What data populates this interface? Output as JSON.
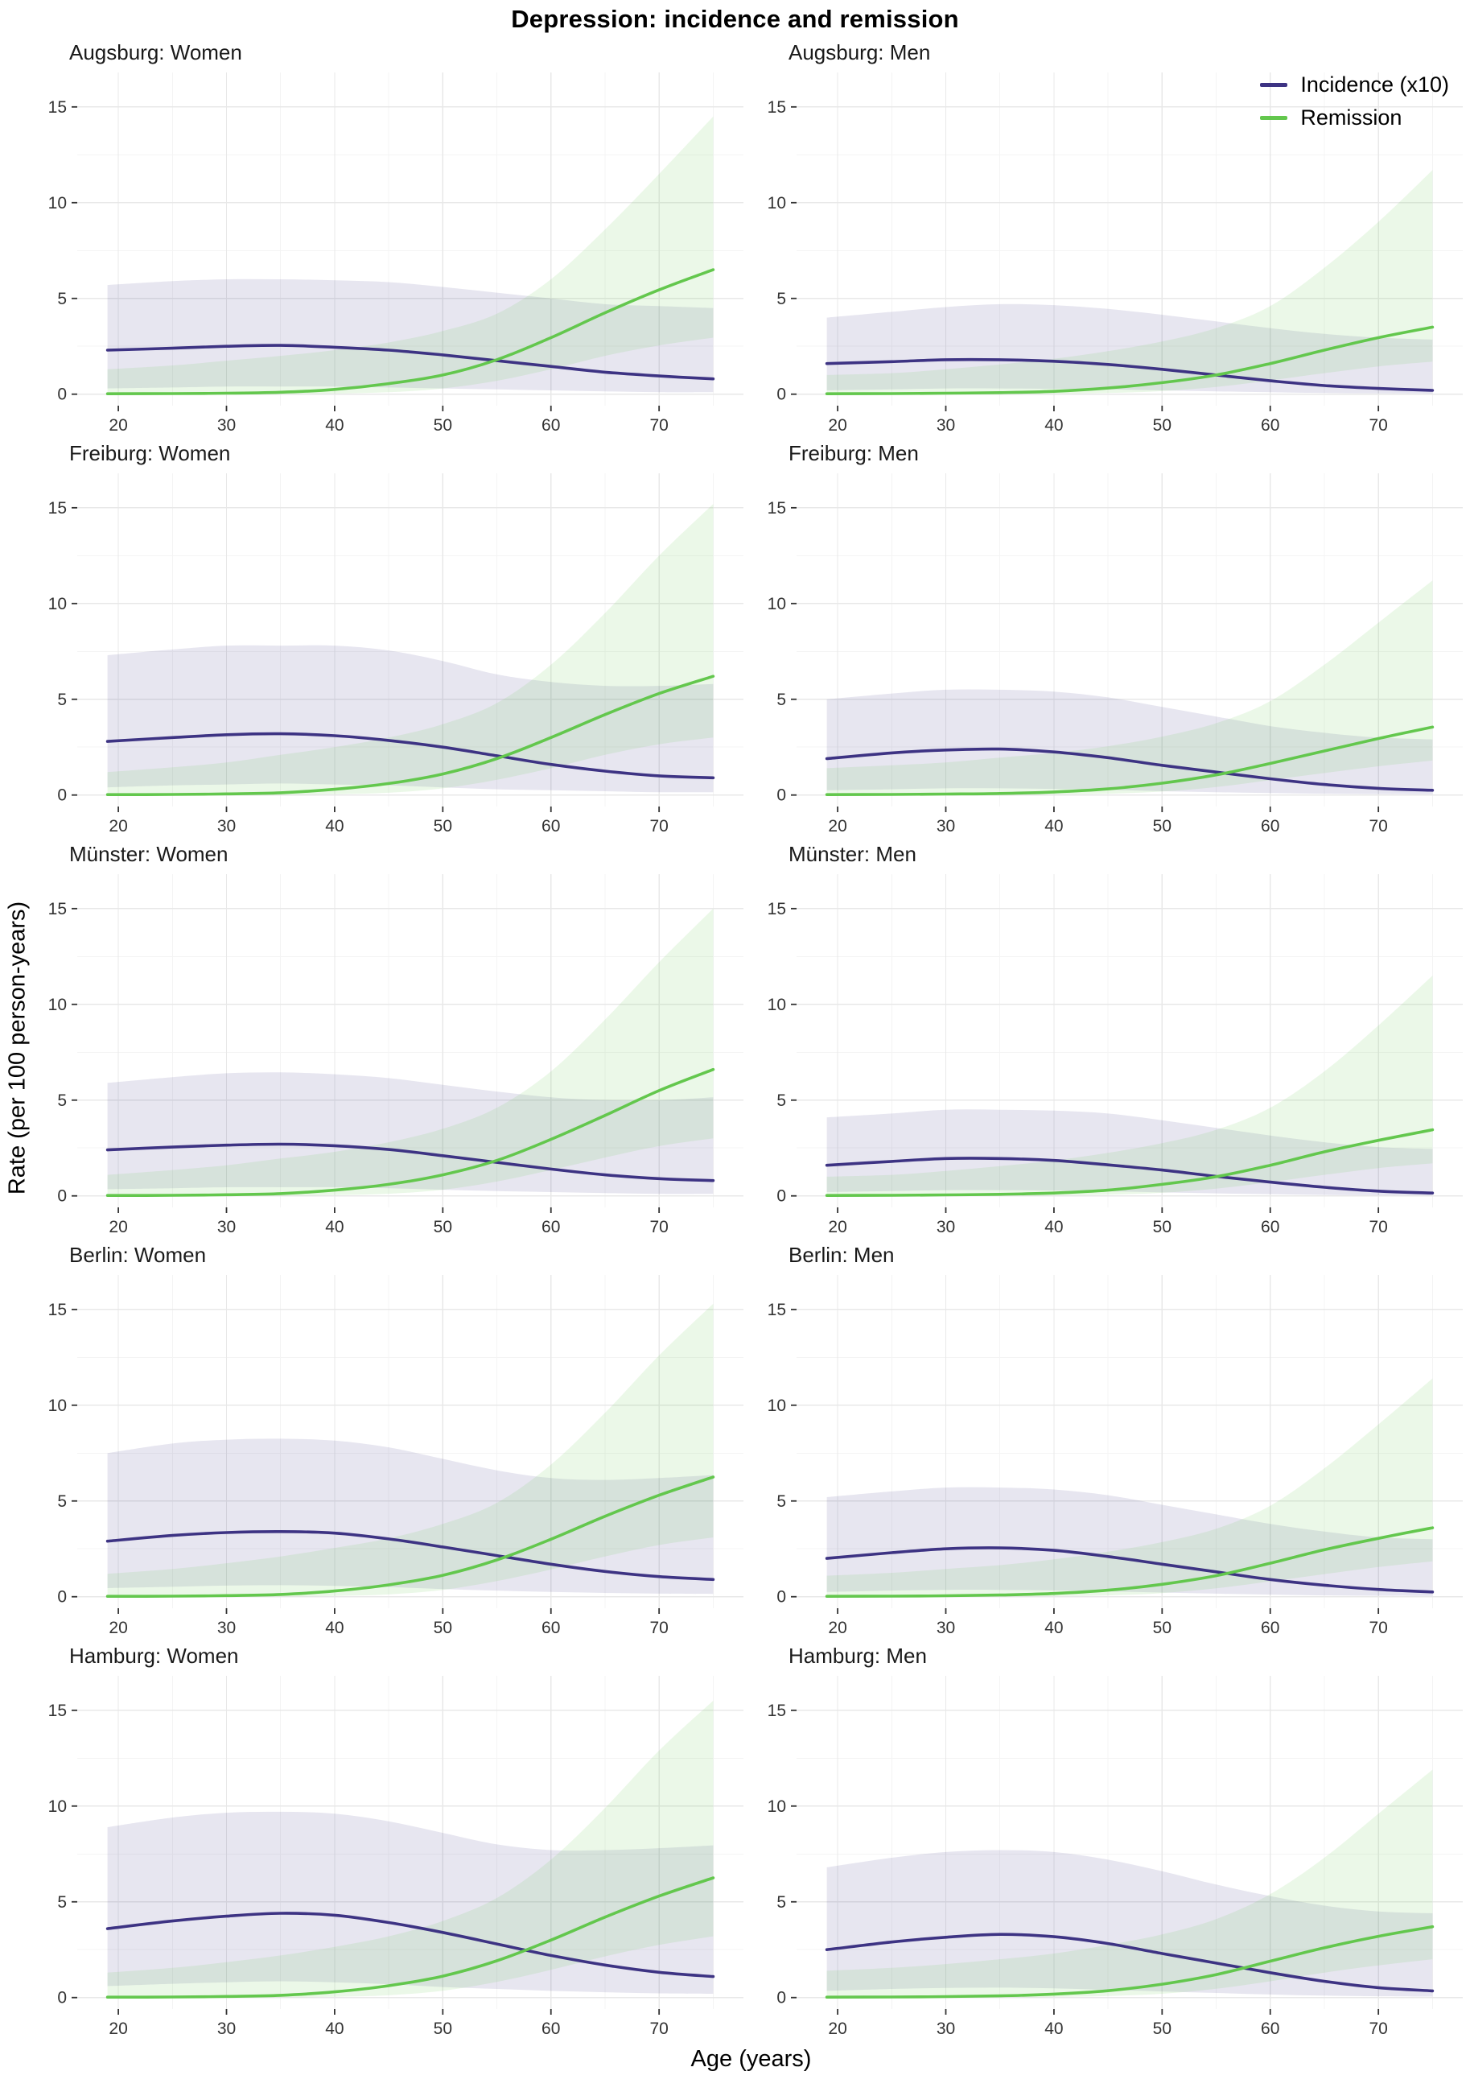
{
  "title": "Depression: incidence and remission",
  "xlabel": "Age (years)",
  "ylabel": "Rate (per 100 person-years)",
  "legend": {
    "incidence": "Incidence (x10)",
    "remission": "Remission"
  },
  "colors": {
    "incidence": "#3d3383",
    "remission": "#63c74d",
    "incidence_fill": "rgba(61,51,131,0.12)",
    "remission_fill": "rgba(99,199,77,0.13)",
    "grid_major": "#e8e8e8",
    "grid_minor": "#f4f4f4",
    "tick": "#333333",
    "tick_label": "#333333"
  },
  "chart_data": {
    "type": "line",
    "title": "Depression: incidence and remission",
    "xlabel": "Age (years)",
    "ylabel": "Rate (per 100 person-years)",
    "x": [
      19,
      25,
      30,
      35,
      40,
      45,
      50,
      55,
      60,
      65,
      70,
      75
    ],
    "x_ticks": [
      20,
      30,
      40,
      50,
      60,
      70
    ],
    "x_minor": [
      25,
      35,
      45,
      55,
      65,
      75
    ],
    "y_ticks": [
      0,
      5,
      10,
      15
    ],
    "y_minor": [
      2.5,
      7.5,
      12.5
    ],
    "xlim": [
      16.2,
      77.8
    ],
    "ylim": [
      -0.6,
      16.8
    ],
    "legend_position": "top-right-first-men-panel",
    "grid": "on",
    "panels": [
      {
        "title": "Augsburg: Women",
        "incidence": {
          "line": [
            2.3,
            2.4,
            2.5,
            2.55,
            2.45,
            2.3,
            2.05,
            1.75,
            1.45,
            1.15,
            0.95,
            0.8
          ],
          "upper": [
            5.7,
            5.9,
            6.0,
            6.0,
            5.95,
            5.85,
            5.6,
            5.3,
            5.0,
            4.7,
            4.6,
            4.5
          ],
          "lower": [
            0.3,
            0.35,
            0.4,
            0.4,
            0.4,
            0.35,
            0.3,
            0.25,
            0.2,
            0.15,
            0.1,
            0.1
          ]
        },
        "remission": {
          "line": [
            0.02,
            0.03,
            0.05,
            0.1,
            0.25,
            0.55,
            1.0,
            1.8,
            2.95,
            4.25,
            5.45,
            6.5
          ],
          "upper": [
            1.3,
            1.5,
            1.75,
            2.0,
            2.3,
            2.7,
            3.3,
            4.2,
            6.0,
            8.6,
            11.5,
            14.5
          ],
          "lower": [
            0.0,
            0.0,
            0.0,
            0.01,
            0.03,
            0.1,
            0.3,
            0.7,
            1.3,
            2.0,
            2.55,
            2.95
          ]
        }
      },
      {
        "title": "Augsburg: Men",
        "incidence": {
          "line": [
            1.6,
            1.7,
            1.8,
            1.8,
            1.72,
            1.55,
            1.3,
            1.0,
            0.7,
            0.45,
            0.3,
            0.2
          ],
          "upper": [
            4.0,
            4.3,
            4.55,
            4.7,
            4.65,
            4.45,
            4.15,
            3.8,
            3.45,
            3.15,
            2.95,
            2.85
          ],
          "lower": [
            0.2,
            0.25,
            0.3,
            0.3,
            0.28,
            0.25,
            0.2,
            0.15,
            0.1,
            0.06,
            0.04,
            0.03
          ]
        },
        "remission": {
          "line": [
            0.02,
            0.03,
            0.05,
            0.08,
            0.15,
            0.32,
            0.6,
            1.0,
            1.6,
            2.3,
            2.95,
            3.5
          ],
          "upper": [
            1.0,
            1.1,
            1.3,
            1.55,
            1.85,
            2.25,
            2.75,
            3.45,
            4.6,
            6.6,
            9.0,
            11.7
          ],
          "lower": [
            0.0,
            0.0,
            0.0,
            0.01,
            0.02,
            0.06,
            0.16,
            0.38,
            0.72,
            1.1,
            1.45,
            1.7
          ]
        }
      },
      {
        "title": "Freiburg: Women",
        "incidence": {
          "line": [
            2.8,
            3.0,
            3.15,
            3.2,
            3.1,
            2.85,
            2.5,
            2.05,
            1.6,
            1.25,
            1.0,
            0.9
          ],
          "upper": [
            7.3,
            7.6,
            7.8,
            7.8,
            7.8,
            7.55,
            7.0,
            6.3,
            5.9,
            5.7,
            5.7,
            5.8
          ],
          "lower": [
            0.4,
            0.5,
            0.55,
            0.6,
            0.55,
            0.5,
            0.4,
            0.3,
            0.25,
            0.2,
            0.15,
            0.15
          ]
        },
        "remission": {
          "line": [
            0.02,
            0.03,
            0.06,
            0.12,
            0.3,
            0.6,
            1.1,
            1.9,
            3.0,
            4.2,
            5.3,
            6.2
          ],
          "upper": [
            1.2,
            1.45,
            1.7,
            2.1,
            2.5,
            3.0,
            3.7,
            4.8,
            6.8,
            9.5,
            12.5,
            15.2
          ],
          "lower": [
            0.0,
            0.0,
            0.0,
            0.01,
            0.04,
            0.12,
            0.35,
            0.8,
            1.4,
            2.1,
            2.65,
            3.0
          ]
        }
      },
      {
        "title": "Freiburg: Men",
        "incidence": {
          "line": [
            1.9,
            2.2,
            2.35,
            2.4,
            2.25,
            1.95,
            1.55,
            1.2,
            0.85,
            0.55,
            0.35,
            0.25
          ],
          "upper": [
            5.0,
            5.3,
            5.5,
            5.5,
            5.4,
            5.1,
            4.6,
            4.1,
            3.6,
            3.25,
            3.0,
            2.9
          ],
          "lower": [
            0.25,
            0.3,
            0.35,
            0.35,
            0.32,
            0.27,
            0.2,
            0.15,
            0.1,
            0.07,
            0.05,
            0.04
          ]
        },
        "remission": {
          "line": [
            0.02,
            0.03,
            0.05,
            0.08,
            0.16,
            0.32,
            0.62,
            1.05,
            1.65,
            2.3,
            2.95,
            3.55
          ],
          "upper": [
            1.4,
            1.55,
            1.7,
            1.95,
            2.2,
            2.55,
            3.05,
            3.75,
            4.9,
            6.8,
            9.0,
            11.2
          ],
          "lower": [
            0.0,
            0.0,
            0.0,
            0.01,
            0.03,
            0.07,
            0.18,
            0.42,
            0.78,
            1.15,
            1.5,
            1.8
          ]
        }
      },
      {
        "title": "Münster: Women",
        "incidence": {
          "line": [
            2.4,
            2.55,
            2.65,
            2.7,
            2.62,
            2.42,
            2.1,
            1.75,
            1.4,
            1.1,
            0.9,
            0.8
          ],
          "upper": [
            5.9,
            6.2,
            6.4,
            6.45,
            6.35,
            6.15,
            5.8,
            5.45,
            5.15,
            5.0,
            5.0,
            5.15
          ],
          "lower": [
            0.35,
            0.4,
            0.45,
            0.45,
            0.45,
            0.4,
            0.32,
            0.25,
            0.2,
            0.15,
            0.1,
            0.1
          ]
        },
        "remission": {
          "line": [
            0.02,
            0.03,
            0.06,
            0.12,
            0.3,
            0.6,
            1.1,
            1.85,
            2.95,
            4.2,
            5.5,
            6.6
          ],
          "upper": [
            1.1,
            1.35,
            1.6,
            1.95,
            2.3,
            2.8,
            3.5,
            4.6,
            6.5,
            9.2,
            12.2,
            15.0
          ],
          "lower": [
            0.0,
            0.0,
            0.0,
            0.01,
            0.04,
            0.11,
            0.32,
            0.75,
            1.35,
            2.0,
            2.6,
            3.0
          ]
        }
      },
      {
        "title": "Münster: Men",
        "incidence": {
          "line": [
            1.6,
            1.8,
            1.95,
            1.95,
            1.85,
            1.62,
            1.35,
            1.02,
            0.72,
            0.45,
            0.25,
            0.15
          ],
          "upper": [
            4.1,
            4.3,
            4.5,
            4.5,
            4.45,
            4.3,
            3.95,
            3.55,
            3.15,
            2.8,
            2.55,
            2.45
          ],
          "lower": [
            0.2,
            0.25,
            0.3,
            0.3,
            0.28,
            0.24,
            0.18,
            0.13,
            0.09,
            0.05,
            0.03,
            0.02
          ]
        },
        "remission": {
          "line": [
            0.02,
            0.03,
            0.05,
            0.08,
            0.15,
            0.3,
            0.6,
            1.0,
            1.6,
            2.3,
            2.9,
            3.45
          ],
          "upper": [
            1.0,
            1.1,
            1.3,
            1.55,
            1.85,
            2.25,
            2.75,
            3.45,
            4.6,
            6.5,
            8.9,
            11.5
          ],
          "lower": [
            0.0,
            0.0,
            0.0,
            0.01,
            0.02,
            0.06,
            0.16,
            0.38,
            0.72,
            1.1,
            1.45,
            1.7
          ]
        }
      },
      {
        "title": "Berlin: Women",
        "incidence": {
          "line": [
            2.9,
            3.2,
            3.35,
            3.4,
            3.32,
            3.02,
            2.6,
            2.15,
            1.7,
            1.32,
            1.05,
            0.9
          ],
          "upper": [
            7.5,
            8.0,
            8.2,
            8.25,
            8.15,
            7.8,
            7.2,
            6.6,
            6.2,
            6.1,
            6.2,
            6.35
          ],
          "lower": [
            0.45,
            0.52,
            0.58,
            0.6,
            0.57,
            0.5,
            0.4,
            0.32,
            0.25,
            0.2,
            0.16,
            0.15
          ]
        },
        "remission": {
          "line": [
            0.02,
            0.03,
            0.06,
            0.12,
            0.3,
            0.62,
            1.12,
            1.92,
            3.0,
            4.2,
            5.3,
            6.25
          ],
          "upper": [
            1.2,
            1.45,
            1.75,
            2.1,
            2.55,
            3.05,
            3.8,
            4.9,
            6.9,
            9.6,
            12.6,
            15.3
          ],
          "lower": [
            0.0,
            0.0,
            0.0,
            0.01,
            0.04,
            0.12,
            0.36,
            0.82,
            1.42,
            2.1,
            2.7,
            3.1
          ]
        }
      },
      {
        "title": "Berlin: Men",
        "incidence": {
          "line": [
            2.0,
            2.3,
            2.5,
            2.55,
            2.42,
            2.1,
            1.7,
            1.3,
            0.9,
            0.6,
            0.38,
            0.25
          ],
          "upper": [
            5.2,
            5.5,
            5.7,
            5.7,
            5.6,
            5.3,
            4.8,
            4.3,
            3.8,
            3.4,
            3.1,
            3.0
          ],
          "lower": [
            0.25,
            0.32,
            0.36,
            0.36,
            0.33,
            0.28,
            0.22,
            0.16,
            0.11,
            0.07,
            0.05,
            0.04
          ]
        },
        "remission": {
          "line": [
            0.02,
            0.03,
            0.05,
            0.09,
            0.17,
            0.34,
            0.65,
            1.1,
            1.75,
            2.45,
            3.05,
            3.6
          ],
          "upper": [
            1.1,
            1.25,
            1.45,
            1.65,
            1.95,
            2.35,
            2.85,
            3.55,
            4.75,
            6.7,
            9.0,
            11.4
          ],
          "lower": [
            0.0,
            0.0,
            0.0,
            0.01,
            0.03,
            0.07,
            0.19,
            0.44,
            0.8,
            1.18,
            1.55,
            1.85
          ]
        }
      },
      {
        "title": "Hamburg: Women",
        "incidence": {
          "line": [
            3.6,
            4.0,
            4.25,
            4.4,
            4.3,
            3.92,
            3.4,
            2.8,
            2.2,
            1.7,
            1.32,
            1.1
          ],
          "upper": [
            8.9,
            9.4,
            9.65,
            9.7,
            9.6,
            9.2,
            8.6,
            8.0,
            7.7,
            7.7,
            7.8,
            7.95
          ],
          "lower": [
            0.6,
            0.72,
            0.8,
            0.85,
            0.8,
            0.7,
            0.55,
            0.45,
            0.35,
            0.28,
            0.22,
            0.2
          ]
        },
        "remission": {
          "line": [
            0.02,
            0.03,
            0.06,
            0.12,
            0.3,
            0.62,
            1.12,
            1.92,
            3.0,
            4.2,
            5.3,
            6.25
          ],
          "upper": [
            1.3,
            1.55,
            1.85,
            2.2,
            2.65,
            3.2,
            4.0,
            5.2,
            7.2,
            9.9,
            12.9,
            15.5
          ],
          "lower": [
            0.0,
            0.0,
            0.0,
            0.01,
            0.04,
            0.12,
            0.36,
            0.82,
            1.45,
            2.15,
            2.75,
            3.2
          ]
        }
      },
      {
        "title": "Hamburg: Men",
        "incidence": {
          "line": [
            2.5,
            2.9,
            3.15,
            3.3,
            3.18,
            2.82,
            2.3,
            1.8,
            1.3,
            0.85,
            0.52,
            0.35
          ],
          "upper": [
            6.8,
            7.3,
            7.6,
            7.7,
            7.6,
            7.2,
            6.6,
            5.9,
            5.3,
            4.8,
            4.5,
            4.4
          ],
          "lower": [
            0.35,
            0.45,
            0.5,
            0.52,
            0.48,
            0.4,
            0.32,
            0.24,
            0.16,
            0.1,
            0.07,
            0.05
          ]
        },
        "remission": {
          "line": [
            0.02,
            0.03,
            0.05,
            0.09,
            0.18,
            0.36,
            0.7,
            1.2,
            1.9,
            2.6,
            3.2,
            3.7
          ],
          "upper": [
            1.4,
            1.55,
            1.75,
            2.0,
            2.3,
            2.75,
            3.3,
            4.1,
            5.4,
            7.3,
            9.6,
            11.9
          ],
          "lower": [
            0.0,
            0.0,
            0.0,
            0.01,
            0.03,
            0.08,
            0.2,
            0.46,
            0.85,
            1.3,
            1.68,
            2.0
          ]
        }
      }
    ]
  }
}
